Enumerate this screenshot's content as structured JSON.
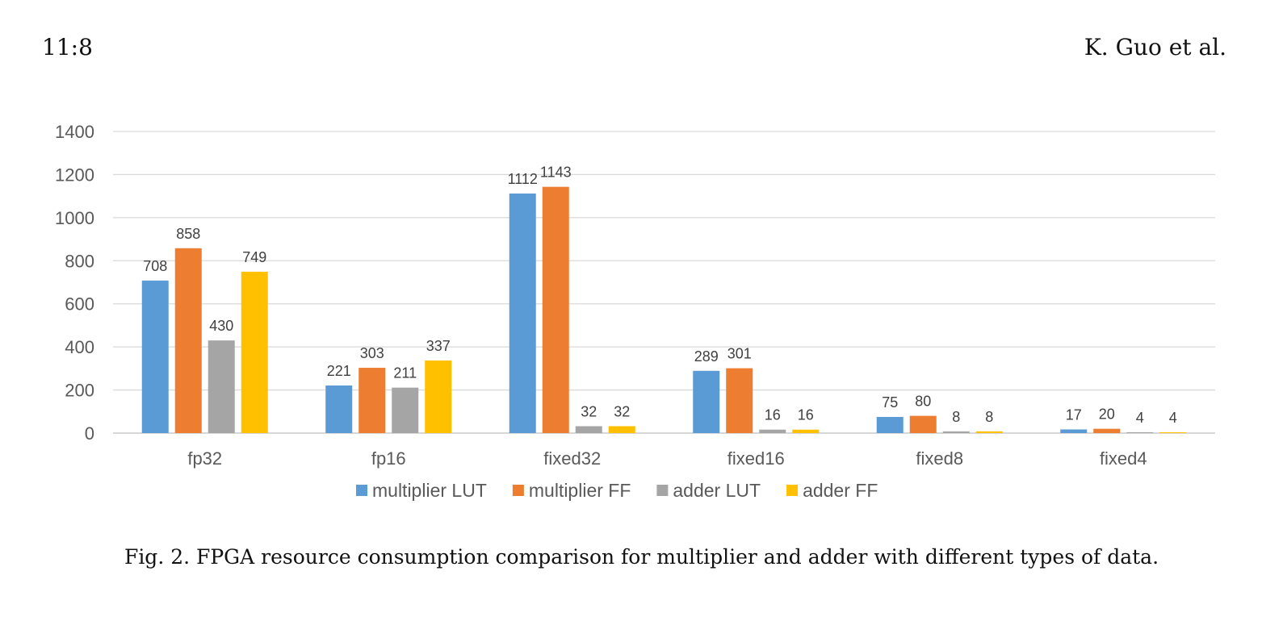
{
  "header": {
    "page_number": "11:8",
    "running_head": "K. Guo et al."
  },
  "caption": "Fig. 2.  FPGA resource consumption comparison for multiplier and adder with different types of data.",
  "chart_data": {
    "type": "bar",
    "title": "",
    "xlabel": "",
    "ylabel": "",
    "categories": [
      "fp32",
      "fp16",
      "fixed32",
      "fixed16",
      "fixed8",
      "fixed4"
    ],
    "series": [
      {
        "name": "multiplier LUT",
        "color": "#5B9BD5",
        "values": [
          708,
          221,
          1112,
          289,
          75,
          17
        ]
      },
      {
        "name": "multiplier FF",
        "color": "#ED7D31",
        "values": [
          858,
          303,
          1143,
          301,
          80,
          20
        ]
      },
      {
        "name": "adder LUT",
        "color": "#A5A5A5",
        "values": [
          430,
          211,
          32,
          16,
          8,
          4
        ]
      },
      {
        "name": "adder FF",
        "color": "#FFC000",
        "values": [
          749,
          337,
          32,
          16,
          8,
          4
        ]
      }
    ],
    "ylim": [
      0,
      1400
    ],
    "yticks": [
      0,
      200,
      400,
      600,
      800,
      1000,
      1200,
      1400
    ],
    "grid": true,
    "legend": "bottom"
  }
}
